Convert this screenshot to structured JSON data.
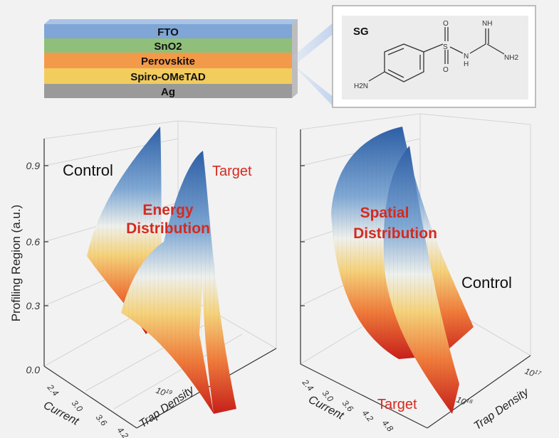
{
  "layer_stack": {
    "layers": [
      {
        "label": "FTO",
        "color": "#7fa6d6"
      },
      {
        "label": "SnO2",
        "color": "#8fbf7a"
      },
      {
        "label": "Perovskite",
        "color": "#f39a4a"
      },
      {
        "label": "Spiro-OMeTAD",
        "color": "#f2cc5c"
      },
      {
        "label": "Ag",
        "color": "#9a9a9a"
      }
    ]
  },
  "molecule": {
    "name": "SG",
    "atoms": {
      "o_top": "O",
      "o_bottom": "O",
      "s": "S",
      "nh_link": "N",
      "h_link": "H",
      "nh_imine": "NH",
      "nh2_right": "NH2",
      "h2n_left": "H2N"
    }
  },
  "y_axis_label": "Profiling Region (a.u.)",
  "left_plot": {
    "y_ticks": [
      "0.0",
      "0.3",
      "0.6",
      "0.9"
    ],
    "current_ticks": [
      "2.4",
      "3.0",
      "3.6",
      "4.2"
    ],
    "current_label": "Current",
    "trap_ticks": [
      "10",
      "19"
    ],
    "trap_label": "Trap Density",
    "annotation_control": "Control",
    "annotation_target": "Target",
    "title_line1": "Energy",
    "title_line2": "Distribution"
  },
  "right_plot": {
    "current_ticks": [
      "2.4",
      "3.0",
      "3.6",
      "4.2",
      "4.8"
    ],
    "current_label": "Current",
    "trap_tick_high": {
      "base": "10",
      "exp": "17"
    },
    "trap_tick_low": {
      "base": "10",
      "exp": "16"
    },
    "trap_label": "Trap Density",
    "annotation_control": "Control",
    "annotation_target": "Target",
    "title_line1": "Spatial",
    "title_line2": "Distribution"
  },
  "colors": {
    "accent_red": "#d42a20",
    "text": "#111111"
  }
}
